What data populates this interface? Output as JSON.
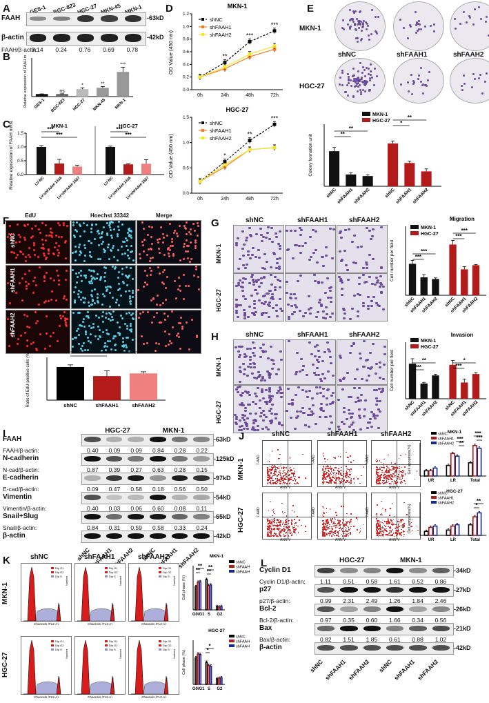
{
  "panels": {
    "A": {
      "letter": "A",
      "lanes": [
        "GES-1",
        "BGC-823",
        "HGC-27",
        "MKN-45",
        "MKN-1"
      ],
      "rows": [
        {
          "name": "FAAH",
          "kd": "-63kD"
        },
        {
          "name": "β-actin",
          "kd": "-42kD"
        }
      ],
      "ratio_label": "FAAH/β-actin:",
      "ratios": [
        "0.14",
        "0.24",
        "0.76",
        "0.69",
        "0.78"
      ],
      "faah_intensity": [
        0.14,
        0.24,
        0.76,
        0.69,
        0.78
      ]
    },
    "B": {
      "letter": "B"
    },
    "C": {
      "letter": "C"
    },
    "D": {
      "letter": "D"
    },
    "E": {
      "letter": "E",
      "rows": [
        "MKN-1",
        "HGC-27"
      ],
      "cols": [
        "shNC",
        "shFAAH1",
        "shFAAH2"
      ]
    },
    "F": {
      "letter": "F",
      "cols": [
        "EdU",
        "Hoechst 33342",
        "Merge"
      ],
      "rows": [
        "shNC",
        "shFAAH1",
        "shFAAH2"
      ]
    },
    "G": {
      "letter": "G",
      "cols": [
        "shNC",
        "shFAAH1",
        "shFAAH2"
      ],
      "rows": [
        "MKN-1",
        "HGC-27"
      ]
    },
    "H": {
      "letter": "H",
      "cols": [
        "shNC",
        "shFAAH1",
        "shFAAH2"
      ],
      "rows": [
        "MKN-1",
        "HGC-27"
      ]
    },
    "I": {
      "letter": "I",
      "groups": [
        "HGC-27",
        "MKN-1"
      ],
      "lanes": [
        "shNC",
        "shFAAH1",
        "shFAAH2",
        "shNC",
        "shFAAH1",
        "shFAAH2"
      ],
      "rows": [
        {
          "name": "FAAH",
          "kd": "-63kD",
          "ratio_label": "FAAH/β-actin:",
          "ratios": [
            "0.40",
            "0.09",
            "0.09",
            "0.84",
            "0.28",
            "0.22"
          ]
        },
        {
          "name": "N-cadherin",
          "kd": "-125kD",
          "ratio_label": "N-cad/β-actin:",
          "ratios": [
            "0.87",
            "0.39",
            "0.27",
            "0.63",
            "0.28",
            "0.15"
          ]
        },
        {
          "name": "E-cadherin",
          "kd": "-97kD",
          "ratio_label": "E-cad/β-actin:",
          "ratios": [
            "0.09",
            "0.47",
            "0.58",
            "0.18",
            "0.56",
            "0.50"
          ]
        },
        {
          "name": "Vimentin",
          "kd": "-54kD",
          "ratio_label": "Vimentin/β-actin:",
          "ratios": [
            "0.40",
            "0.03",
            "0.06",
            "0.60",
            "0.08",
            "0.11"
          ]
        },
        {
          "name": "Snail+Slug",
          "kd": "-65kD",
          "ratio_label": "Snail/β-actin:",
          "ratios": [
            "0.84",
            "0.31",
            "0.59",
            "0.58",
            "0.33",
            "0.24"
          ]
        },
        {
          "name": "β-actin",
          "kd": "-42kD",
          "ratio_label": "",
          "ratios": []
        }
      ]
    },
    "J": {
      "letter": "J",
      "cols": [
        "shNC",
        "shFAAH1",
        "shFAAH2"
      ],
      "rows": [
        "MKN-1",
        "HGC-27"
      ],
      "flow_x": "ANN V",
      "flow_y": "7-AAD"
    },
    "K": {
      "letter": "K",
      "cols": [
        "shNC",
        "shFAAH1",
        "shFAAH2"
      ],
      "rows": [
        "MKN-1",
        "HGC-27"
      ],
      "hist_x": "Channels (FL2-A)",
      "hist_y": "Number",
      "hist_legend": [
        "Dip G1",
        "Dip G2",
        "Dip S"
      ]
    },
    "L": {
      "letter": "L",
      "groups": [
        "HGC-27",
        "MKN-1"
      ],
      "lanes": [
        "shNC",
        "shFAAH1",
        "shFAAH2",
        "shNC",
        "shFAAH1",
        "shFAAH2"
      ],
      "rows": [
        {
          "name": "Cyclin D1",
          "kd": "-34kD",
          "ratio_label": "Cyclin D1/β-actin:",
          "ratios": [
            "1.11",
            "0.51",
            "0.58",
            "1.61",
            "0.52",
            "0.86"
          ]
        },
        {
          "name": "p27",
          "kd": "-27kD",
          "ratio_label": "p27/β-actin:",
          "ratios": [
            "0.99",
            "2.31",
            "2.49",
            "1.26",
            "1.84",
            "2.46"
          ]
        },
        {
          "name": "Bcl-2",
          "kd": "-26kD",
          "ratio_label": "Bcl-2/β-actin:",
          "ratios": [
            "0.97",
            "0.35",
            "0.60",
            "1.66",
            "0.34",
            "0.56"
          ]
        },
        {
          "name": "Bax",
          "kd": "-21kD",
          "ratio_label": "Bax/β-actin:",
          "ratios": [
            "0.82",
            "1.51",
            "1.85",
            "0.61",
            "0.88",
            "1.02"
          ]
        },
        {
          "name": "β-actin",
          "kd": "-42kD",
          "ratio_label": "",
          "ratios": []
        }
      ]
    }
  },
  "colors": {
    "shNC": "#000000",
    "shFAAH1": "#f47c20",
    "shFAAH2": "#f5e62a",
    "MKN1_bar": "#111111",
    "HGC27_bar": "#b31b1b",
    "flow_red": "#e02020",
    "bar_blue": "#1a2a8c",
    "purple_stain": "#6a4a9c"
  },
  "chart_data": [
    {
      "id": "B",
      "type": "bar",
      "ylabel": "Relative expression of FAAH mRNA",
      "categories": [
        "GES-1",
        "BGC-823",
        "HGC-27",
        "MKN-45",
        "MKN-1"
      ],
      "values": [
        1.0,
        1.0,
        2.9,
        3.4,
        9.6
      ],
      "errors": [
        0.05,
        0.1,
        0.5,
        0.5,
        1.8
      ],
      "significance": [
        "",
        "ns",
        "*",
        "**",
        "***"
      ],
      "ylim": [
        0,
        15
      ],
      "yticks": []
    },
    {
      "id": "C",
      "type": "bar",
      "ylabel": "Relative expression of FAAH mRNA",
      "groups": [
        "MKN-1",
        "HGC-27"
      ],
      "categories": [
        "LV-NC",
        "LV-shFAAH-1416",
        "LV-shFAAH-1557"
      ],
      "series": [
        {
          "group": "MKN-1",
          "values": [
            1.0,
            0.4,
            0.29
          ],
          "errors": [
            0.05,
            0.15,
            0.05
          ]
        },
        {
          "group": "HGC-27",
          "values": [
            1.0,
            0.37,
            0.39
          ],
          "errors": [
            0.03,
            0.02,
            0.15
          ]
        }
      ],
      "significance": [
        "***",
        "***"
      ],
      "ylim": [
        0,
        1.5
      ],
      "yticks": [
        "0.0",
        "0.5",
        "1.0",
        "1.5"
      ]
    },
    {
      "id": "D1",
      "type": "line",
      "title": "MKN-1",
      "ylabel": "OD Value (450 nm)",
      "x": [
        "0h",
        "24h",
        "48h",
        "72h"
      ],
      "ylim": [
        0,
        1.2
      ],
      "yticks": [
        "0.0",
        "0.2",
        "0.4",
        "0.6",
        "0.8",
        "1.0",
        "1.2"
      ],
      "series": [
        {
          "name": "shNC",
          "values": [
            0.2,
            0.43,
            0.76,
            0.93
          ]
        },
        {
          "name": "shFAAH1",
          "values": [
            0.2,
            0.33,
            0.52,
            0.64
          ]
        },
        {
          "name": "shFAAH2",
          "values": [
            0.2,
            0.36,
            0.56,
            0.69
          ]
        }
      ],
      "significance": [
        "",
        "**",
        "***",
        "***"
      ]
    },
    {
      "id": "D2",
      "type": "line",
      "title": "HGC-27",
      "ylabel": "OD Value (450 nm)",
      "x": [
        "0h",
        "24h",
        "48h",
        "72h"
      ],
      "ylim": [
        0,
        1.5
      ],
      "yticks": [
        "0.0",
        "0.5",
        "1.0",
        "1.5"
      ],
      "series": [
        {
          "name": "shNC",
          "values": [
            0.23,
            0.62,
            1.04,
            1.36
          ]
        },
        {
          "name": "shFAAH1",
          "values": [
            0.23,
            0.52,
            0.86,
            0.9
          ]
        },
        {
          "name": "shFAAH2",
          "values": [
            0.23,
            0.56,
            0.86,
            0.9
          ]
        }
      ],
      "significance": [
        "",
        "*",
        "**",
        "***"
      ]
    },
    {
      "id": "E",
      "type": "bar",
      "ylabel": "Colony formation unit",
      "legend": [
        "MKN-1",
        "HGC-27"
      ],
      "categories": [
        "shNC",
        "shFAAH1",
        "shFAAH2",
        "shNC",
        "shFAAH1",
        "shFAAH2"
      ],
      "values": [
        113,
        38,
        33,
        138,
        75,
        48
      ],
      "errors": [
        12,
        5,
        4,
        8,
        6,
        8
      ],
      "bar_groups": [
        "MKN-1",
        "MKN-1",
        "MKN-1",
        "HGC-27",
        "HGC-27",
        "HGC-27"
      ],
      "significance": [
        "**",
        "**",
        "*",
        "**"
      ],
      "ylim": [
        0,
        200
      ]
    },
    {
      "id": "F",
      "type": "bar",
      "ylabel": "Ratio of EdU-positive cells (%)",
      "categories": [
        "shNC",
        "shFAAH1",
        "shFAAH2"
      ],
      "values": [
        62,
        45,
        50
      ],
      "errors": [
        4,
        10,
        3
      ],
      "significance": [
        "*",
        "*"
      ],
      "ylim": [
        0,
        80
      ]
    },
    {
      "id": "G",
      "type": "bar",
      "title": "Migration",
      "ylabel": "Cell number per field",
      "legend": [
        "MKN-1",
        "HGC-27"
      ],
      "categories": [
        "shNC",
        "shFAAH1",
        "shFAAH2",
        "shNC",
        "shFAAH1",
        "shFAAH2"
      ],
      "values": [
        228,
        130,
        118,
        368,
        188,
        218
      ],
      "errors": [
        25,
        20,
        8,
        30,
        20,
        5
      ],
      "bar_groups": [
        "MKN-1",
        "MKN-1",
        "MKN-1",
        "HGC-27",
        "HGC-27",
        "HGC-27"
      ],
      "significance": [
        "***",
        "***",
        "***",
        "***"
      ],
      "ylim": [
        0,
        500
      ]
    },
    {
      "id": "H",
      "type": "bar",
      "title": "Invasion",
      "ylabel": "Cell number per field",
      "legend": [
        "MKN-1",
        "HGC-27"
      ],
      "categories": [
        "shNC",
        "shFAAH1",
        "shFAAH2",
        "shNC",
        "shFAAH1",
        "shFAAH2"
      ],
      "values": [
        248,
        108,
        165,
        240,
        115,
        175
      ],
      "errors": [
        35,
        8,
        8,
        30,
        25,
        10
      ],
      "bar_groups": [
        "MKN-1",
        "MKN-1",
        "MKN-1",
        "HGC-27",
        "HGC-27",
        "HGC-27"
      ],
      "significance": [
        "**",
        "***",
        "***",
        "*"
      ],
      "ylim": [
        0,
        400
      ]
    },
    {
      "id": "J1",
      "type": "bar",
      "title": "MKN-1",
      "ylabel": "Cell apoptosis(%)",
      "legend": [
        "shNC",
        "shFAAH1",
        "shFAAH2"
      ],
      "categories": [
        "UR",
        "LR",
        "Total"
      ],
      "series": [
        {
          "name": "shNC",
          "values": [
            4,
            8,
            10
          ]
        },
        {
          "name": "shFAAH1",
          "values": [
            4,
            17,
            23
          ]
        },
        {
          "name": "shFAAH2",
          "values": [
            6,
            15,
            21
          ]
        }
      ],
      "significance": [
        "**",
        "***",
        "***",
        "***"
      ],
      "ylim": [
        0,
        25
      ]
    },
    {
      "id": "J2",
      "type": "bar",
      "title": "HGC-27",
      "ylabel": "Cell apoptosis(%)",
      "legend": [
        "shNC",
        "shFAAH1",
        "shFAAH2"
      ],
      "categories": [
        "UR",
        "LR",
        "Total"
      ],
      "series": [
        {
          "name": "shNC",
          "values": [
            3,
            4,
            8
          ]
        },
        {
          "name": "shFAAH1",
          "values": [
            6,
            7,
            14
          ]
        },
        {
          "name": "shFAAH2",
          "values": [
            7,
            8,
            17
          ]
        }
      ],
      "significance": [
        "*",
        "**"
      ],
      "ylim": [
        0,
        25
      ]
    },
    {
      "id": "K1",
      "type": "bar",
      "title": "MKN-1",
      "ylabel": "Cell phase (%)",
      "legend": [
        "shNC",
        "shFAAH1",
        "shFAAH2"
      ],
      "categories": [
        "G0/G1",
        "S",
        "G2"
      ],
      "series": [
        {
          "name": "shNC",
          "values": [
            42,
            55,
            6
          ]
        },
        {
          "name": "shFAAH1",
          "values": [
            50,
            44,
            5
          ]
        },
        {
          "name": "shFAAH2",
          "values": [
            51,
            45,
            6
          ]
        }
      ],
      "significance": [
        "**",
        "**",
        "**",
        "**"
      ],
      "ylim": [
        0,
        80
      ]
    },
    {
      "id": "K2",
      "type": "bar",
      "title": "HGC-27",
      "ylabel": "Cell phase (%)",
      "legend": [
        "shNC",
        "shFAAH1",
        "shFAAH2"
      ],
      "categories": [
        "G0/G1",
        "S",
        "G2"
      ],
      "series": [
        {
          "name": "shNC",
          "values": [
            48,
            40,
            10
          ]
        },
        {
          "name": "shFAAH1",
          "values": [
            55,
            34,
            11
          ]
        },
        {
          "name": "shFAAH2",
          "values": [
            54,
            33,
            12
          ]
        }
      ],
      "significance": [
        "*",
        "*"
      ],
      "ylim": [
        0,
        80
      ]
    }
  ]
}
